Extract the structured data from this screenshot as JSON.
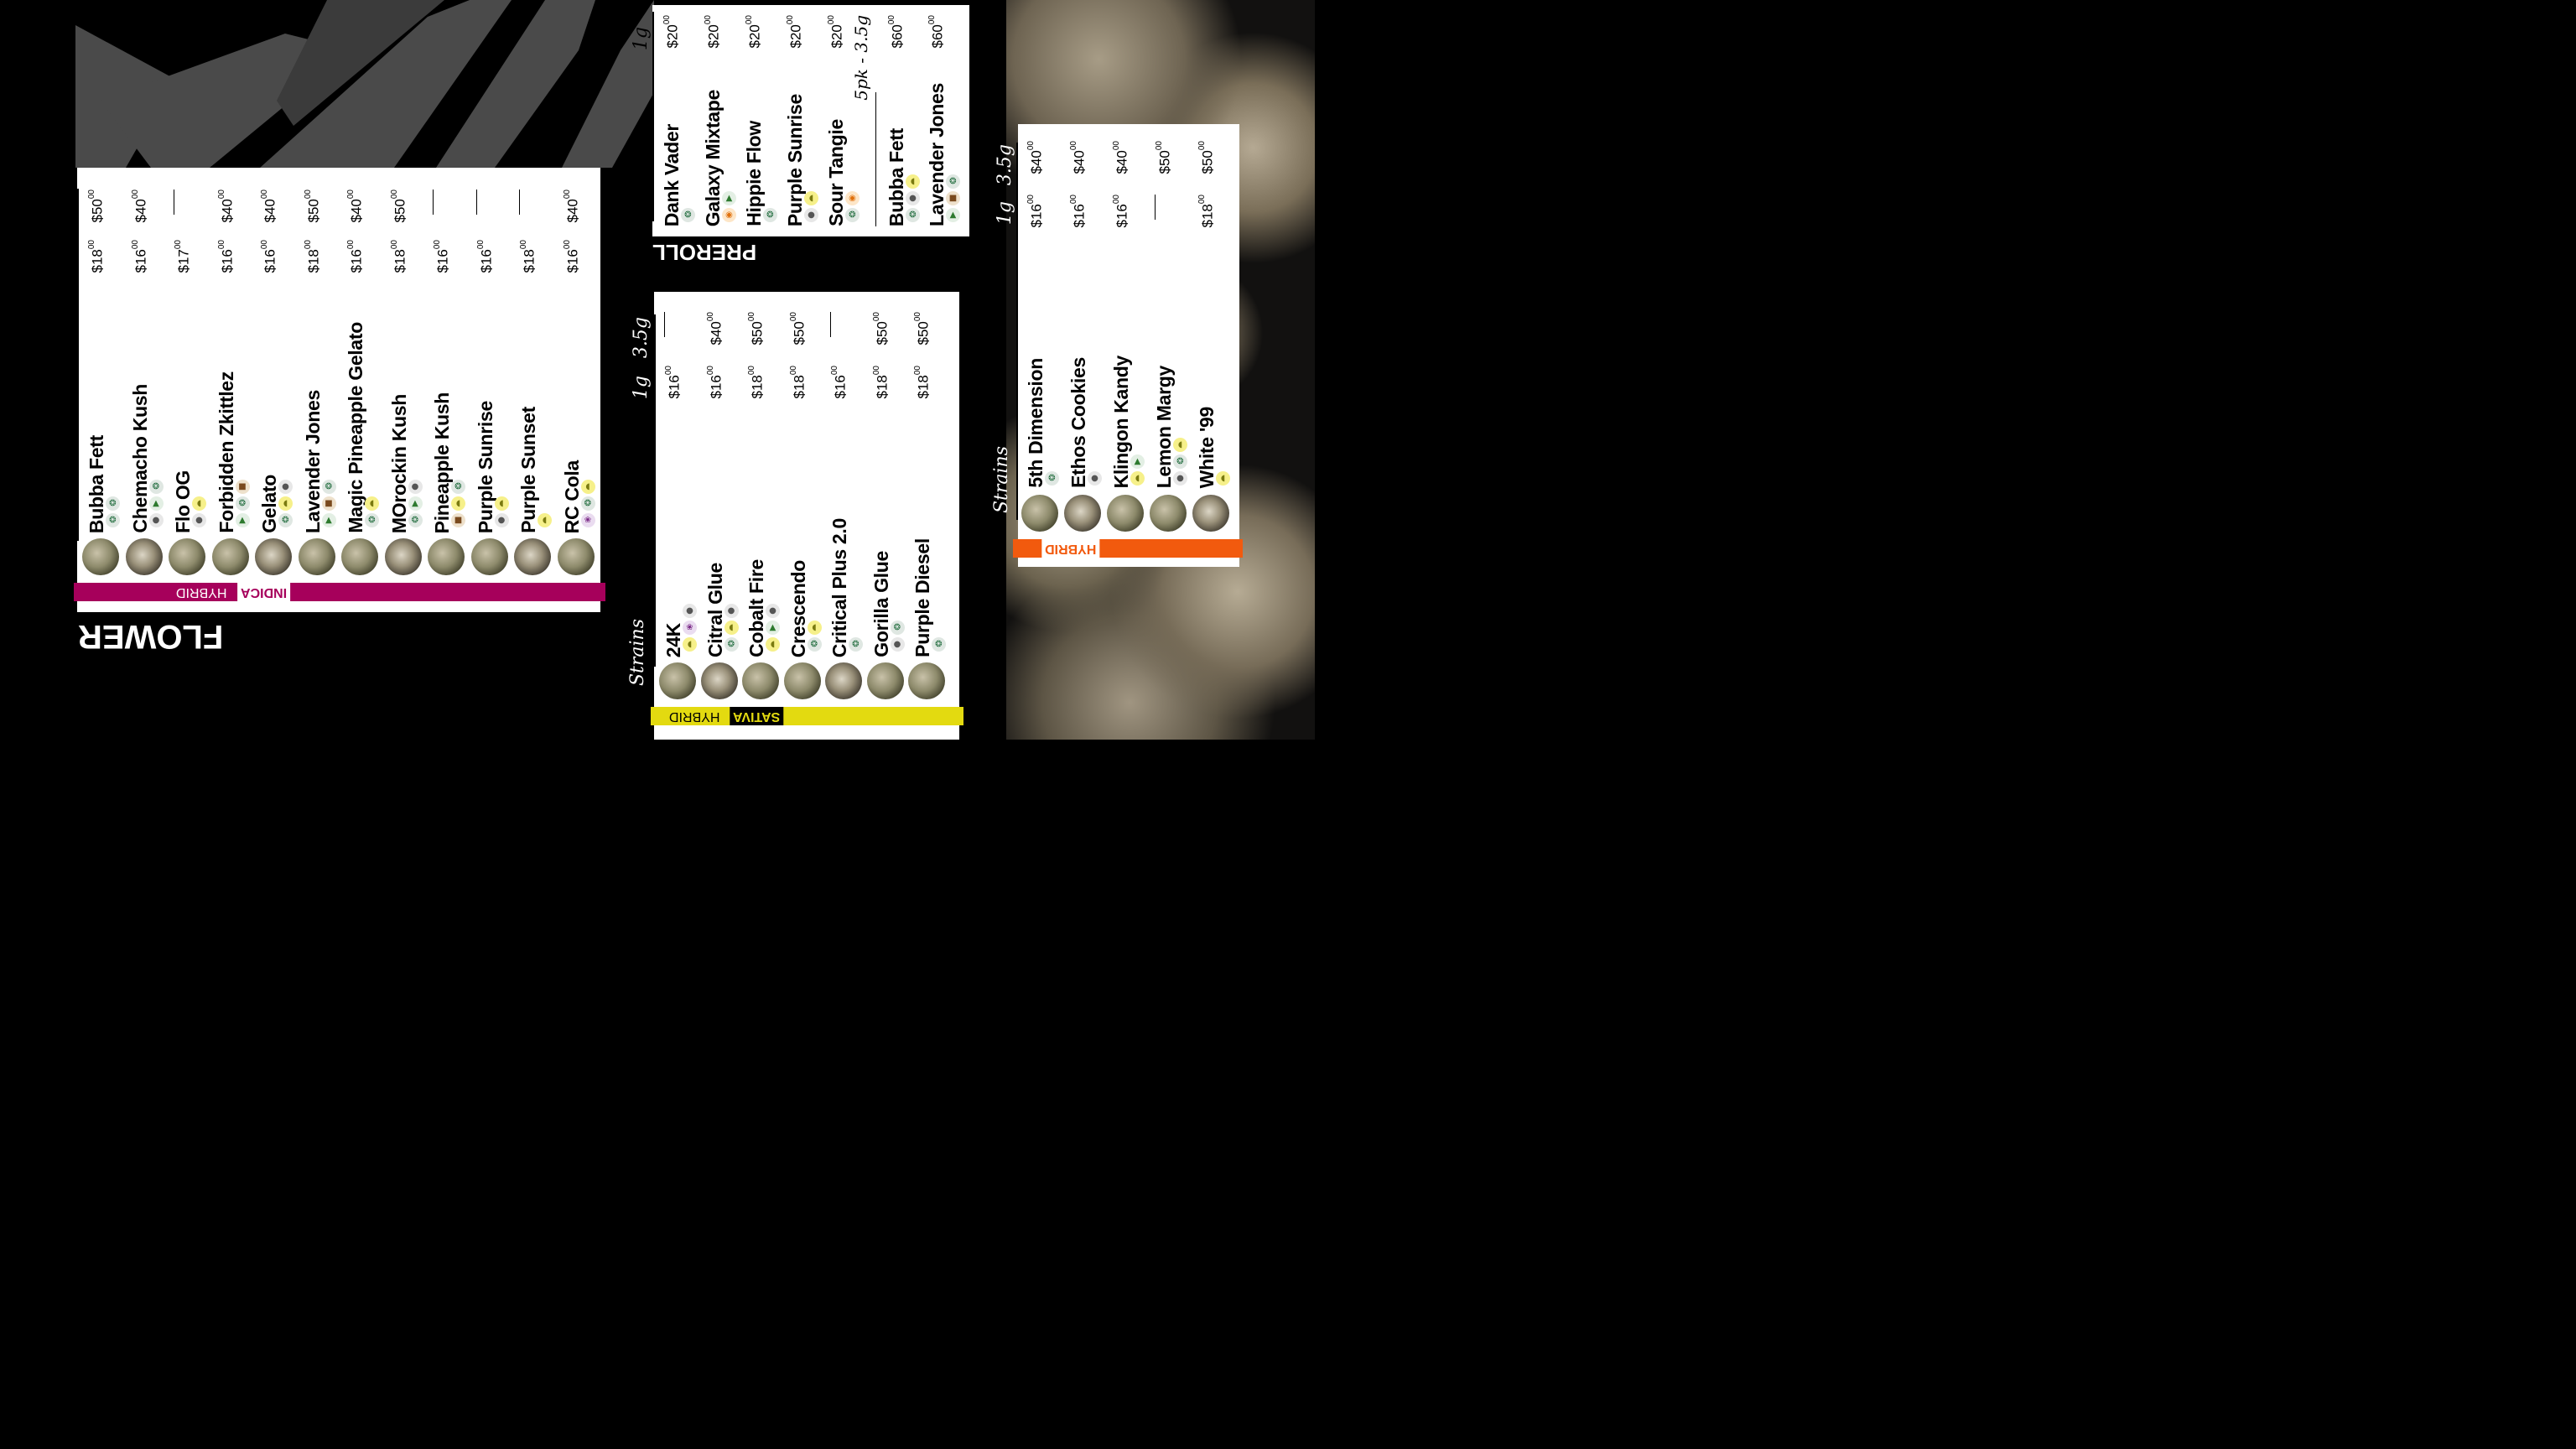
{
  "colors": {
    "indica": "#a6005b",
    "sativa": "#e3da10",
    "hybrid": "#f25a0e"
  },
  "titles": {
    "flower": "FLOWER",
    "preroll": "PREROLL"
  },
  "headers": {
    "strains": "Strains",
    "g1": "1g",
    "g35": "3.5g",
    "pack": "5pk - 3.5g"
  },
  "bands": {
    "indica": {
      "main": "INDICA",
      "sub": "HYBRID"
    },
    "sativa": {
      "main": "SATIVA",
      "sub": "HYBRID"
    },
    "hybrid": {
      "main": "HYBRID"
    }
  },
  "indica": [
    {
      "name": "Bubba Fett",
      "p1": "$18",
      "p35": "$50",
      "icons": [
        "leaf-icon",
        "leaf-icon"
      ]
    },
    {
      "name": "Chemacho Kush",
      "p1": "$16",
      "p35": "$40",
      "icons": [
        "gum-icon",
        "tree-icon",
        "leaf-icon"
      ]
    },
    {
      "name": "Flo OG",
      "p1": "$17",
      "p35": "—",
      "icons": [
        "gum-icon",
        "lemon-icon"
      ]
    },
    {
      "name": "Forbidden Zkittlez",
      "p1": "$16",
      "p35": "$40",
      "icons": [
        "tree-icon",
        "leaf-icon",
        "wood-icon"
      ]
    },
    {
      "name": "Gelato",
      "p1": "$16",
      "p35": "$40",
      "icons": [
        "leaf-icon",
        "lemon-icon",
        "gum-icon"
      ]
    },
    {
      "name": "Lavender Jones",
      "p1": "$18",
      "p35": "$50",
      "icons": [
        "tree-icon",
        "wood-icon",
        "leaf-icon"
      ]
    },
    {
      "name": "Magic Pineapple Gelato",
      "p1": "$16",
      "p35": "$40",
      "icons": [
        "leaf-icon",
        "lemon-icon"
      ]
    },
    {
      "name": "MOrockin Kush",
      "p1": "$18",
      "p35": "$50",
      "icons": [
        "leaf-icon",
        "tree-icon",
        "gum-icon"
      ]
    },
    {
      "name": "Pineapple Kush",
      "p1": "$16",
      "p35": "—",
      "icons": [
        "wood-icon",
        "lemon-icon",
        "leaf-icon"
      ]
    },
    {
      "name": "Purple Sunrise",
      "p1": "$16",
      "p35": "—",
      "icons": [
        "gum-icon",
        "lemon-icon"
      ]
    },
    {
      "name": "Purple Sunset",
      "p1": "$18",
      "p35": "—",
      "icons": [
        "lemon-icon"
      ]
    },
    {
      "name": "RC Cola",
      "p1": "$16",
      "p35": "$40",
      "icons": [
        "berry-icon",
        "leaf-icon",
        "lemon-icon"
      ]
    }
  ],
  "sativa": [
    {
      "name": "24K",
      "p1": "$16",
      "p35": "—",
      "icons": [
        "lemon-icon",
        "berry-icon",
        "gum-icon"
      ]
    },
    {
      "name": "Citral Glue",
      "p1": "$16",
      "p35": "$40",
      "icons": [
        "leaf-icon",
        "lemon-icon",
        "gum-icon"
      ]
    },
    {
      "name": "Cobalt Fire",
      "p1": "$18",
      "p35": "$50",
      "icons": [
        "lemon-icon",
        "tree-icon",
        "gum-icon"
      ]
    },
    {
      "name": "Crescendo",
      "p1": "$18",
      "p35": "$50",
      "icons": [
        "leaf-icon",
        "lemon-icon"
      ]
    },
    {
      "name": "Critical Plus 2.0",
      "p1": "$16",
      "p35": "—",
      "icons": [
        "leaf-icon"
      ]
    },
    {
      "name": "Gorilla Glue",
      "p1": "$18",
      "p35": "$50",
      "icons": [
        "gum-icon",
        "leaf-icon"
      ]
    },
    {
      "name": "Purple Diesel",
      "p1": "$18",
      "p35": "$50",
      "icons": [
        "leaf-icon"
      ]
    }
  ],
  "hybrid": [
    {
      "name": "5th Dimension",
      "p1": "$16",
      "p35": "$40",
      "icons": [
        "leaf-icon"
      ]
    },
    {
      "name": "Ethos Cookies",
      "p1": "$16",
      "p35": "$40",
      "icons": [
        "gum-icon"
      ]
    },
    {
      "name": "Klingon Kandy",
      "p1": "$16",
      "p35": "$40",
      "icons": [
        "lemon-icon",
        "tree-icon"
      ]
    },
    {
      "name": "Lemon Margy",
      "p1": "—",
      "p35": "$50",
      "icons": [
        "gum-icon",
        "leaf-icon",
        "lemon-icon"
      ]
    },
    {
      "name": "White '99",
      "p1": "$18",
      "p35": "$50",
      "icons": [
        "lemon-icon"
      ]
    }
  ],
  "preroll_single": [
    {
      "name": "Dank Vader",
      "p1": "$20",
      "icons": [
        "leaf-icon"
      ]
    },
    {
      "name": "Galaxy Mixtape",
      "p1": "$20",
      "icons": [
        "orange-icon",
        "tree-icon"
      ]
    },
    {
      "name": "Hippie Flow",
      "p1": "$20",
      "icons": [
        "leaf-icon"
      ]
    },
    {
      "name": "Purple Sunrise",
      "p1": "$20",
      "icons": [
        "gum-icon",
        "lemon-icon"
      ]
    },
    {
      "name": "Sour Tangie",
      "p1": "$20",
      "icons": [
        "leaf-icon",
        "orange-icon"
      ]
    }
  ],
  "preroll_pack": [
    {
      "name": "Bubba Fett",
      "p1": "$60",
      "icons": [
        "leaf-icon",
        "gum-icon",
        "lemon-icon"
      ]
    },
    {
      "name": "Lavender Jones",
      "p1": "$60",
      "icons": [
        "tree-icon",
        "wood-icon",
        "leaf-icon"
      ]
    }
  ],
  "cents": "00"
}
